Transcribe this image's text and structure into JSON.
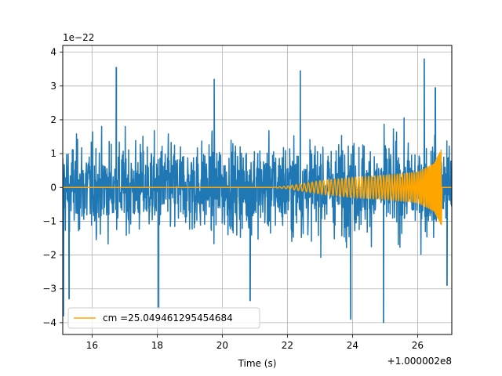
{
  "chart_data": {
    "type": "line",
    "title": "",
    "xlabel": "Time (s)",
    "ylabel": "",
    "x_offset_label": "+1.000002e8",
    "y_scale_label": "1e−22",
    "xlim": [
      15.1,
      27.05
    ],
    "ylim": [
      -4.35,
      4.2
    ],
    "x_ticks": [
      16,
      18,
      20,
      22,
      24,
      26
    ],
    "x_tick_labels": [
      "16",
      "18",
      "20",
      "22",
      "24",
      "26"
    ],
    "y_ticks": [
      4,
      3,
      2,
      1,
      0,
      -1,
      -2,
      -3,
      -4
    ],
    "y_tick_labels": [
      "4",
      "3",
      "2",
      "1",
      "0",
      "−1",
      "−2",
      "−3",
      "−4"
    ],
    "grid": true,
    "legend_position": "lower-left",
    "series": [
      {
        "name": "",
        "color": "#1f77b4",
        "kind": "noise",
        "x_start": 15.1,
        "x_end": 27.05,
        "typical_amplitude": 2.2,
        "peaks": [
          {
            "x": 15.12,
            "y": -3.8
          },
          {
            "x": 15.3,
            "y": -3.3
          },
          {
            "x": 16.75,
            "y": 3.55
          },
          {
            "x": 18.05,
            "y": -3.6
          },
          {
            "x": 19.75,
            "y": 3.2
          },
          {
            "x": 20.85,
            "y": -3.35
          },
          {
            "x": 22.4,
            "y": 3.45
          },
          {
            "x": 23.95,
            "y": -3.9
          },
          {
            "x": 24.95,
            "y": -4.0
          },
          {
            "x": 26.2,
            "y": 3.8
          },
          {
            "x": 26.55,
            "y": 2.95
          },
          {
            "x": 26.9,
            "y": -2.9
          }
        ]
      },
      {
        "name": "cm =25.049461295454684",
        "color": "#ffa500",
        "kind": "chirp",
        "x_start": 15.1,
        "x_end": 27.05,
        "visible_from": 21.5,
        "peak_time": 26.72,
        "peak_amplitude": 1.1,
        "envelope": [
          {
            "x": 22.0,
            "y": 0.04
          },
          {
            "x": 23.0,
            "y": 0.2
          },
          {
            "x": 24.0,
            "y": 0.3
          },
          {
            "x": 25.0,
            "y": 0.36
          },
          {
            "x": 26.0,
            "y": 0.45
          },
          {
            "x": 26.5,
            "y": 0.7
          },
          {
            "x": 26.72,
            "y": 1.1
          }
        ]
      }
    ]
  }
}
